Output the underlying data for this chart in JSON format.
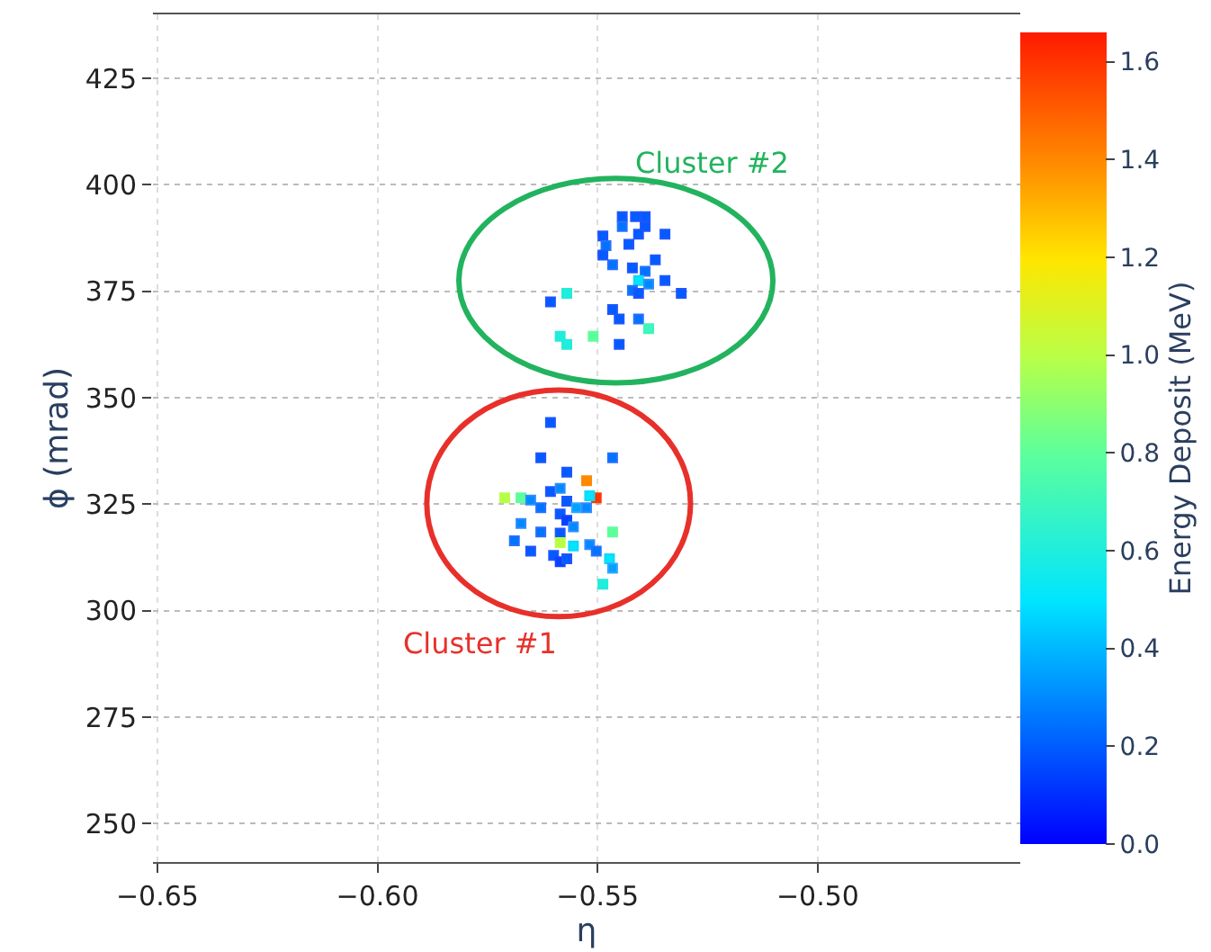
{
  "chart_data": {
    "type": "scatter",
    "xlabel": "η",
    "ylabel": "ϕ (mrad)",
    "clabel": "Energy Deposit (MeV)",
    "xlim": [
      -0.651,
      -0.454
    ],
    "xticks": [
      {
        "value": -0.65,
        "label": "−0.65"
      },
      {
        "value": -0.6,
        "label": "−0.60"
      },
      {
        "value": -0.55,
        "label": "−0.55"
      },
      {
        "value": -0.5,
        "label": "−0.50"
      }
    ],
    "ylim": [
      241,
      440
    ],
    "yticks": [
      250,
      275,
      300,
      325,
      350,
      375,
      400,
      425
    ],
    "clim": [
      0,
      1.66
    ],
    "cticks": [
      {
        "value": 0,
        "label": "0.0"
      },
      {
        "value": 0.2,
        "label": "0.2"
      },
      {
        "value": 0.4,
        "label": "0.4"
      },
      {
        "value": 0.6,
        "label": "0.6"
      },
      {
        "value": 0.8,
        "label": "0.8"
      },
      {
        "value": 1.0,
        "label": "1.0"
      },
      {
        "value": 1.2,
        "label": "1.2"
      },
      {
        "value": 1.4,
        "label": "1.4"
      },
      {
        "value": 1.6,
        "label": "1.6"
      }
    ],
    "grid": true,
    "marker": "square",
    "series": [
      {
        "x": [
          -0.5607,
          -0.5629,
          -0.5466,
          -0.557,
          -0.5525,
          -0.5503,
          -0.5711,
          -0.5674,
          -0.5652,
          -0.5629,
          -0.5607,
          -0.5585,
          -0.557,
          -0.5548,
          -0.5525,
          -0.5518,
          -0.5585,
          -0.557,
          -0.5674,
          -0.5629,
          -0.5585,
          -0.5555,
          -0.5466,
          -0.5689,
          -0.5585,
          -0.5555,
          -0.5518,
          -0.5503,
          -0.5652,
          -0.56,
          -0.5585,
          -0.557,
          -0.5473,
          -0.5466,
          -0.5488
        ],
        "values": [
          344.2,
          335.9,
          335.9,
          332.5,
          330.5,
          326.5,
          326.5,
          326.5,
          326.0,
          324.2,
          328.0,
          328.7,
          325.7,
          324.2,
          324.2,
          327.0,
          322.7,
          321.2,
          320.5,
          318.5,
          318.2,
          319.7,
          318.5,
          316.4,
          316.0,
          315.2,
          315.5,
          314.0,
          314.0,
          313.0,
          311.5,
          312.2,
          312.2,
          310.0,
          306.2
        ],
        "cvalues": [
          0.2,
          0.2,
          0.25,
          0.2,
          1.4,
          1.6,
          1.0,
          0.8,
          0.3,
          0.25,
          0.2,
          0.3,
          0.2,
          0.35,
          0.3,
          0.5,
          0.2,
          0.15,
          0.3,
          0.25,
          0.2,
          0.3,
          0.8,
          0.25,
          1.0,
          0.5,
          0.3,
          0.25,
          0.2,
          0.2,
          0.15,
          0.2,
          0.5,
          0.35,
          0.6
        ],
        "colors": [
          "#1f55ff",
          "#1f55ff",
          "#2670ff",
          "#1f55ff",
          "#ff8a00",
          "#ff3a00",
          "#b8ff47",
          "#5cff9c",
          "#2f8cff",
          "#2670ff",
          "#1f55ff",
          "#2f8cff",
          "#1f55ff",
          "#33a6ff",
          "#2f8cff",
          "#10d8f5",
          "#1f55ff",
          "#1a40ff",
          "#2f8cff",
          "#2670ff",
          "#1f55ff",
          "#2f8cff",
          "#5cff9c",
          "#2670ff",
          "#b8ff47",
          "#10d8f5",
          "#2f8cff",
          "#2670ff",
          "#1f55ff",
          "#1f55ff",
          "#1a40ff",
          "#1f55ff",
          "#10d8f5",
          "#33a6ff",
          "#22ecd8"
        ]
      },
      {
        "x": [
          -0.5444,
          -0.5414,
          -0.5392,
          -0.5444,
          -0.5392,
          -0.5407,
          -0.5347,
          -0.5488,
          -0.5481,
          -0.5429,
          -0.5488,
          -0.5466,
          -0.5369,
          -0.5421,
          -0.5392,
          -0.5407,
          -0.5384,
          -0.5347,
          -0.5421,
          -0.5407,
          -0.531,
          -0.5607,
          -0.557,
          -0.5466,
          -0.5451,
          -0.5407,
          -0.5384,
          -0.5585,
          -0.557,
          -0.551,
          -0.5451
        ],
        "values": [
          392.5,
          392.5,
          392.5,
          390.2,
          390.2,
          388.4,
          388.4,
          388.0,
          385.7,
          386.0,
          383.5,
          381.2,
          382.4,
          380.5,
          379.7,
          377.5,
          376.7,
          377.5,
          375.2,
          374.5,
          374.5,
          372.5,
          374.5,
          370.7,
          368.5,
          368.5,
          366.2,
          364.4,
          362.5,
          364.4,
          362.5
        ],
        "cvalues": [
          0.2,
          0.2,
          0.2,
          0.25,
          0.2,
          0.2,
          0.2,
          0.2,
          0.25,
          0.2,
          0.2,
          0.25,
          0.2,
          0.2,
          0.25,
          0.5,
          0.3,
          0.2,
          0.25,
          0.2,
          0.2,
          0.2,
          0.6,
          0.2,
          0.2,
          0.25,
          0.7,
          0.6,
          0.6,
          0.8,
          0.2
        ],
        "colors": [
          "#1f55ff",
          "#1f55ff",
          "#1f55ff",
          "#2670ff",
          "#1f55ff",
          "#1f55ff",
          "#1f55ff",
          "#1f55ff",
          "#2670ff",
          "#1f55ff",
          "#1f55ff",
          "#2670ff",
          "#1f55ff",
          "#1f55ff",
          "#2670ff",
          "#10d8f5",
          "#2f8cff",
          "#1f55ff",
          "#2670ff",
          "#1f55ff",
          "#1f55ff",
          "#1f55ff",
          "#22ecd8",
          "#1f55ff",
          "#1f55ff",
          "#2670ff",
          "#40f5b8",
          "#22ecd8",
          "#22ecd8",
          "#5cff9c",
          "#1f55ff"
        ]
      }
    ],
    "annotations": [
      "Cluster #1",
      "Cluster #2"
    ]
  }
}
